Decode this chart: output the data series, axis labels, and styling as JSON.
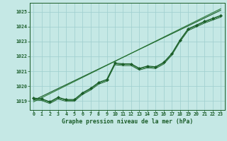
{
  "title": "Graphe pression niveau de la mer (hPa)",
  "background_color": "#c5e8e5",
  "grid_color": "#9ecece",
  "line_color_dark": "#1a5c28",
  "line_color_mid": "#2a7a38",
  "xlim": [
    -0.5,
    23.5
  ],
  "ylim": [
    1018.4,
    1025.6
  ],
  "yticks": [
    1019,
    1020,
    1021,
    1022,
    1023,
    1024,
    1025
  ],
  "xticks": [
    0,
    1,
    2,
    3,
    4,
    5,
    6,
    7,
    8,
    9,
    10,
    11,
    12,
    13,
    14,
    15,
    16,
    17,
    18,
    19,
    20,
    21,
    22,
    23
  ],
  "series1": [
    1019.2,
    1019.15,
    1018.95,
    1019.25,
    1019.1,
    1019.1,
    1019.55,
    1019.85,
    1020.25,
    1020.45,
    1021.55,
    1021.5,
    1021.5,
    1021.2,
    1021.35,
    1021.3,
    1021.6,
    1022.2,
    1023.1,
    1023.85,
    1024.1,
    1024.35,
    1024.55,
    1024.75
  ],
  "trend1": [
    1019.05,
    1025.1
  ],
  "trend2": [
    1018.95,
    1025.2
  ],
  "xlabel_fontsize": 5.5,
  "ylabel_fontsize": 5.0,
  "tick_fontsize": 4.8,
  "title_fontsize": 5.8
}
